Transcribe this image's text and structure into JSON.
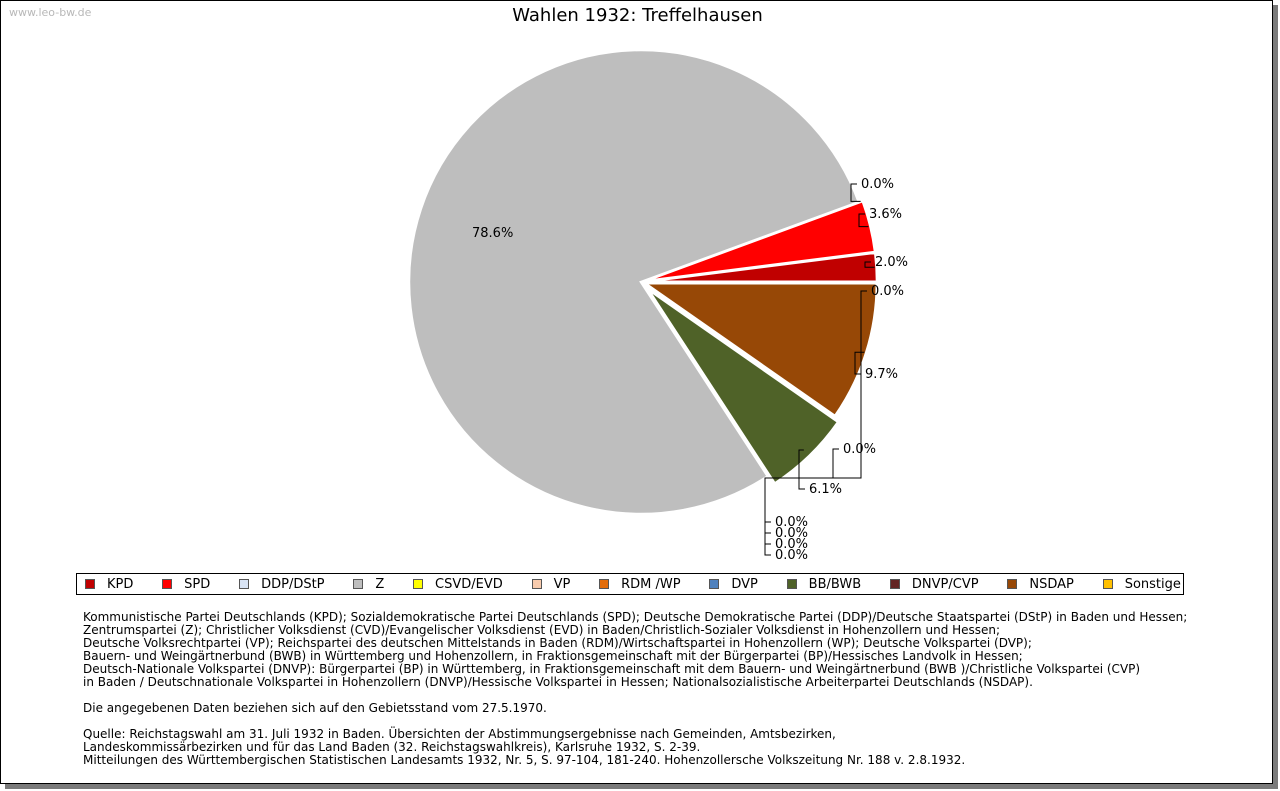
{
  "watermark": "www.leo-bw.de",
  "chart_data": {
    "type": "pie",
    "title": "Wahlen 1932: Treffelhausen",
    "slices": [
      {
        "party": "KPD",
        "value": 2.0,
        "label": "2.0%",
        "color": "#c00000"
      },
      {
        "party": "SPD",
        "value": 3.6,
        "label": "3.6%",
        "color": "#ff0000"
      },
      {
        "party": "DDP/DStP",
        "value": 0.0,
        "label": "0.0%",
        "color": "#d9e4f5"
      },
      {
        "party": "Z",
        "value": 78.6,
        "label": "78.6%",
        "color": "#bebebe"
      },
      {
        "party": "CSVD/EVD",
        "value": 0.0,
        "label": "0.0%",
        "color": "#ffff00"
      },
      {
        "party": "VP",
        "value": 0.0,
        "label": "0.0%",
        "color": "#f8cbad"
      },
      {
        "party": "RDM /WP",
        "value": 0.0,
        "label": "0.0%",
        "color": "#e36c09"
      },
      {
        "party": "DVP",
        "value": 0.0,
        "label": "0.0%",
        "color": "#4f81bd"
      },
      {
        "party": "BB/BWB",
        "value": 6.1,
        "label": "6.1%",
        "color": "#4f6228"
      },
      {
        "party": "DNVP/CVP",
        "value": 0.0,
        "label": "0.0%",
        "color": "#632423"
      },
      {
        "party": "NSDAP",
        "value": 9.7,
        "label": "9.7%",
        "color": "#974806"
      },
      {
        "party": "Sonstige",
        "value": 0.0,
        "label": "0.0%",
        "color": "#ffc000"
      }
    ],
    "legend_position": "bottom"
  },
  "notes": {
    "parties": [
      "Kommunistische Partei Deutschlands (KPD); Sozialdemokratische Partei Deutschlands (SPD); Deutsche Demokratische Partei (DDP)/Deutsche Staatspartei (DStP) in Baden und Hessen;",
      "Zentrumspartei (Z); Christlicher Volksdienst (CVD)/Evangelischer Volksdienst (EVD) in Baden/Christlich-Sozialer Volksdienst in Hohenzollern und Hessen;",
      "Deutsche Volksrechtpartei (VP); Reichspartei des deutschen Mittelstands in Baden (RDM)/Wirtschaftspartei in Hohenzollern (WP); Deutsche Volkspartei (DVP);",
      "Bauern- und Weingärtnerbund (BWB) in Württemberg und Hohenzollern, in Fraktionsgemeinschaft mit der Bürgerpartei (BP)/Hessisches Landvolk in Hessen;",
      "Deutsch-Nationale Volkspartei (DNVP): Bürgerpartei (BP) in Württemberg, in Fraktionsgemeinschaft mit dem Bauern- und Weingärtnerbund (BWB )/Christliche Volkspartei (CVP)",
      "in Baden / Deutschnationale Volkspartei in Hohenzollern (DNVP)/Hessische Volkspartei in Hessen; Nationalsozialistische Arbeiterpartei Deutschlands (NSDAP)."
    ],
    "territory": "Die angegebenen Daten beziehen sich auf den Gebietsstand vom 27.5.1970.",
    "source": [
      "Quelle: Reichstagswahl am 31. Juli 1932 in Baden. Übersichten der Abstimmungsergebnisse nach Gemeinden, Amtsbezirken,",
      "Landeskommissärbezirken und für das Land Baden (32. Reichstagswahlkreis), Karlsruhe 1932, S. 2-39.",
      "Mitteilungen des Württembergischen Statistischen Landesamts 1932, Nr. 5, S. 97-104, 181-240. Hohenzollersche Volkszeitung Nr. 188 v. 2.8.1932."
    ]
  }
}
